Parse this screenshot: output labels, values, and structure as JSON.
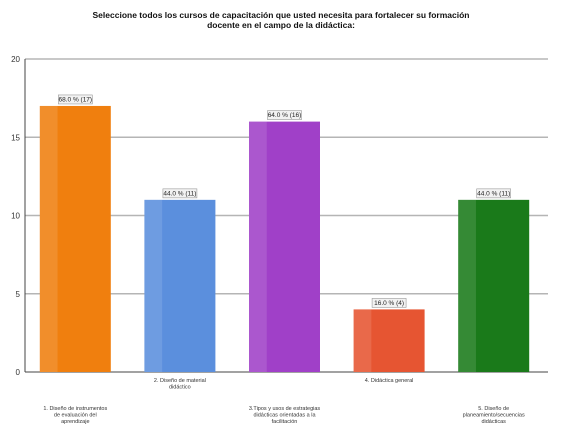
{
  "chart_data": {
    "type": "bar",
    "title": "Seleccione todos los cursos de capacitación que usted necesita para fortalecer su formación\ndocente en el campo de la didáctica:",
    "xlabel": "",
    "ylabel": "",
    "ylim": [
      0,
      20
    ],
    "yticks": [
      0,
      5,
      10,
      15,
      20
    ],
    "grid": true,
    "categories": [
      "1. Diseño de instrumentos de evaluación del aprendizaje",
      "2. Diseño de material didáctico",
      "3.Tipos y usos de estrategias didácticas orientadas a la facilitación",
      "4. Didáctica general",
      "5. Diseño de planeamiento/secuencias didácticas"
    ],
    "values": [
      17,
      11,
      16,
      4,
      11
    ],
    "data_labels": [
      "68.0 % (17)",
      "44.0 % (11)",
      "64.0 % (16)",
      "16.0 % (4)",
      "44.0 % (11)"
    ],
    "colors": [
      "#f07f0e",
      "#5b8fdd",
      "#a040c8",
      "#e65532",
      "#1a7a1a"
    ]
  }
}
